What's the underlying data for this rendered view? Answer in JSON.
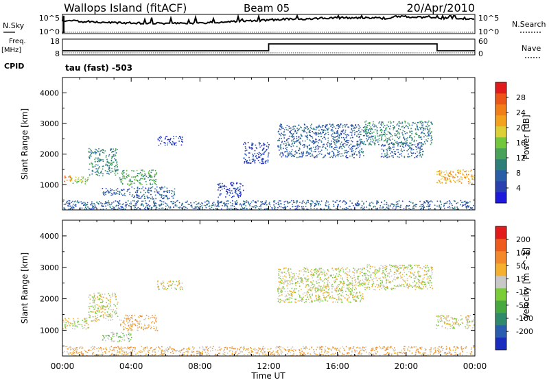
{
  "header": {
    "site": "Wallops Island (fitACF)",
    "beam": "Beam 05",
    "date": "20/Apr/2010"
  },
  "aux": {
    "nsky_label": "N.Sky",
    "nsky_top": "10^5",
    "nsky_bottom": "10^0",
    "nsearch_label": "N.Search",
    "nsearch_top": "10^5",
    "nsearch_bottom": "10^0",
    "freq_label": "Freq.",
    "freq_unit": "[MHz]",
    "freq_top": "18",
    "freq_bottom": "8",
    "nave_label": "Nave",
    "nave_top": "60",
    "nave_bottom": "0",
    "cpid_label": "CPID",
    "cpid_value": "tau (fast) -503"
  },
  "chart_data": [
    {
      "type": "heatmap",
      "title": "",
      "ylabel": "Slant Range [km]",
      "xlabel": "",
      "ylim": [
        180,
        4500
      ],
      "xlim": [
        0,
        24
      ],
      "yticks": [
        1000,
        2000,
        3000,
        4000
      ],
      "colorbar": {
        "label": "Power [dB]",
        "ticks": [
          "4",
          "8",
          "12",
          "16",
          "20",
          "24",
          "28"
        ],
        "colors": [
          "#1e19dd",
          "#2a3fb0",
          "#2a5fa8",
          "#2e7e7a",
          "#48a25a",
          "#72c73c",
          "#dccf37",
          "#f3a21e",
          "#f27e17",
          "#ec5518",
          "#e31a1c"
        ]
      },
      "regions": [
        {
          "x0": 0.0,
          "x1": 0.5,
          "y0": 1100,
          "y1": 1350,
          "level": 8
        },
        {
          "x0": 0.5,
          "x1": 1.5,
          "y0": 1050,
          "y1": 1300,
          "level": 5
        },
        {
          "x0": 1.5,
          "x1": 3.2,
          "y0": 1300,
          "y1": 2200,
          "level": 3
        },
        {
          "x0": 2.3,
          "x1": 4.0,
          "y0": 650,
          "y1": 900,
          "level": 2
        },
        {
          "x0": 3.3,
          "x1": 5.5,
          "y0": 1000,
          "y1": 1500,
          "level": 4
        },
        {
          "x0": 4.0,
          "x1": 6.5,
          "y0": 550,
          "y1": 950,
          "level": 2
        },
        {
          "x0": 5.5,
          "x1": 7.0,
          "y0": 2300,
          "y1": 2600,
          "level": 1
        },
        {
          "x0": 9.0,
          "x1": 10.5,
          "y0": 600,
          "y1": 1100,
          "level": 1
        },
        {
          "x0": 10.5,
          "x1": 12.0,
          "y0": 1700,
          "y1": 2400,
          "level": 1
        },
        {
          "x0": 12.5,
          "x1": 17.5,
          "y0": 1900,
          "y1": 3000,
          "level": 2
        },
        {
          "x0": 17.5,
          "x1": 21.5,
          "y0": 2300,
          "y1": 3100,
          "level": 3
        },
        {
          "x0": 18.5,
          "x1": 21.0,
          "y0": 1900,
          "y1": 2400,
          "level": 2
        },
        {
          "x0": 21.7,
          "x1": 24.0,
          "y0": 1050,
          "y1": 1500,
          "level": 7
        },
        {
          "x0": 0.0,
          "x1": 24.0,
          "y0": 180,
          "y1": 500,
          "level": 2
        }
      ]
    },
    {
      "type": "heatmap",
      "title": "",
      "ylabel": "Slant Range [km]",
      "xlabel": "Time UT",
      "ylim": [
        180,
        4500
      ],
      "xlim": [
        0,
        24
      ],
      "yticks": [
        1000,
        2000,
        3000,
        4000
      ],
      "xticks": [
        "00:00",
        "04:00",
        "08:00",
        "12:00",
        "16:00",
        "20:00",
        "00:00"
      ],
      "colorbar": {
        "label": "Velocity [m s^-1]",
        "ticks": [
          "200",
          "100",
          "50",
          "15",
          "-15",
          "-50",
          "-100",
          "-200"
        ],
        "colors": [
          "#1a2cc0",
          "#2a5cb0",
          "#2e8a6a",
          "#48a840",
          "#7acc38",
          "#c8c8c8",
          "#f5b02e",
          "#f3892a",
          "#ee5b1c",
          "#e31a1c"
        ]
      },
      "regions": [
        {
          "x0": 0.0,
          "x1": 1.5,
          "y0": 1050,
          "y1": 1400,
          "level": 5
        },
        {
          "x0": 1.5,
          "x1": 3.2,
          "y0": 1300,
          "y1": 2200,
          "level": 5
        },
        {
          "x0": 2.3,
          "x1": 4.0,
          "y0": 650,
          "y1": 950,
          "level": 4
        },
        {
          "x0": 3.3,
          "x1": 5.5,
          "y0": 1000,
          "y1": 1500,
          "level": 6
        },
        {
          "x0": 5.5,
          "x1": 7.0,
          "y0": 2300,
          "y1": 2600,
          "level": 5
        },
        {
          "x0": 12.5,
          "x1": 17.5,
          "y0": 1900,
          "y1": 3000,
          "level": 5
        },
        {
          "x0": 17.5,
          "x1": 21.5,
          "y0": 2300,
          "y1": 3100,
          "level": 5
        },
        {
          "x0": 21.7,
          "x1": 24.0,
          "y0": 1050,
          "y1": 1500,
          "level": 5
        },
        {
          "x0": 0.0,
          "x1": 24.0,
          "y0": 180,
          "y1": 500,
          "level": 6
        }
      ]
    }
  ]
}
